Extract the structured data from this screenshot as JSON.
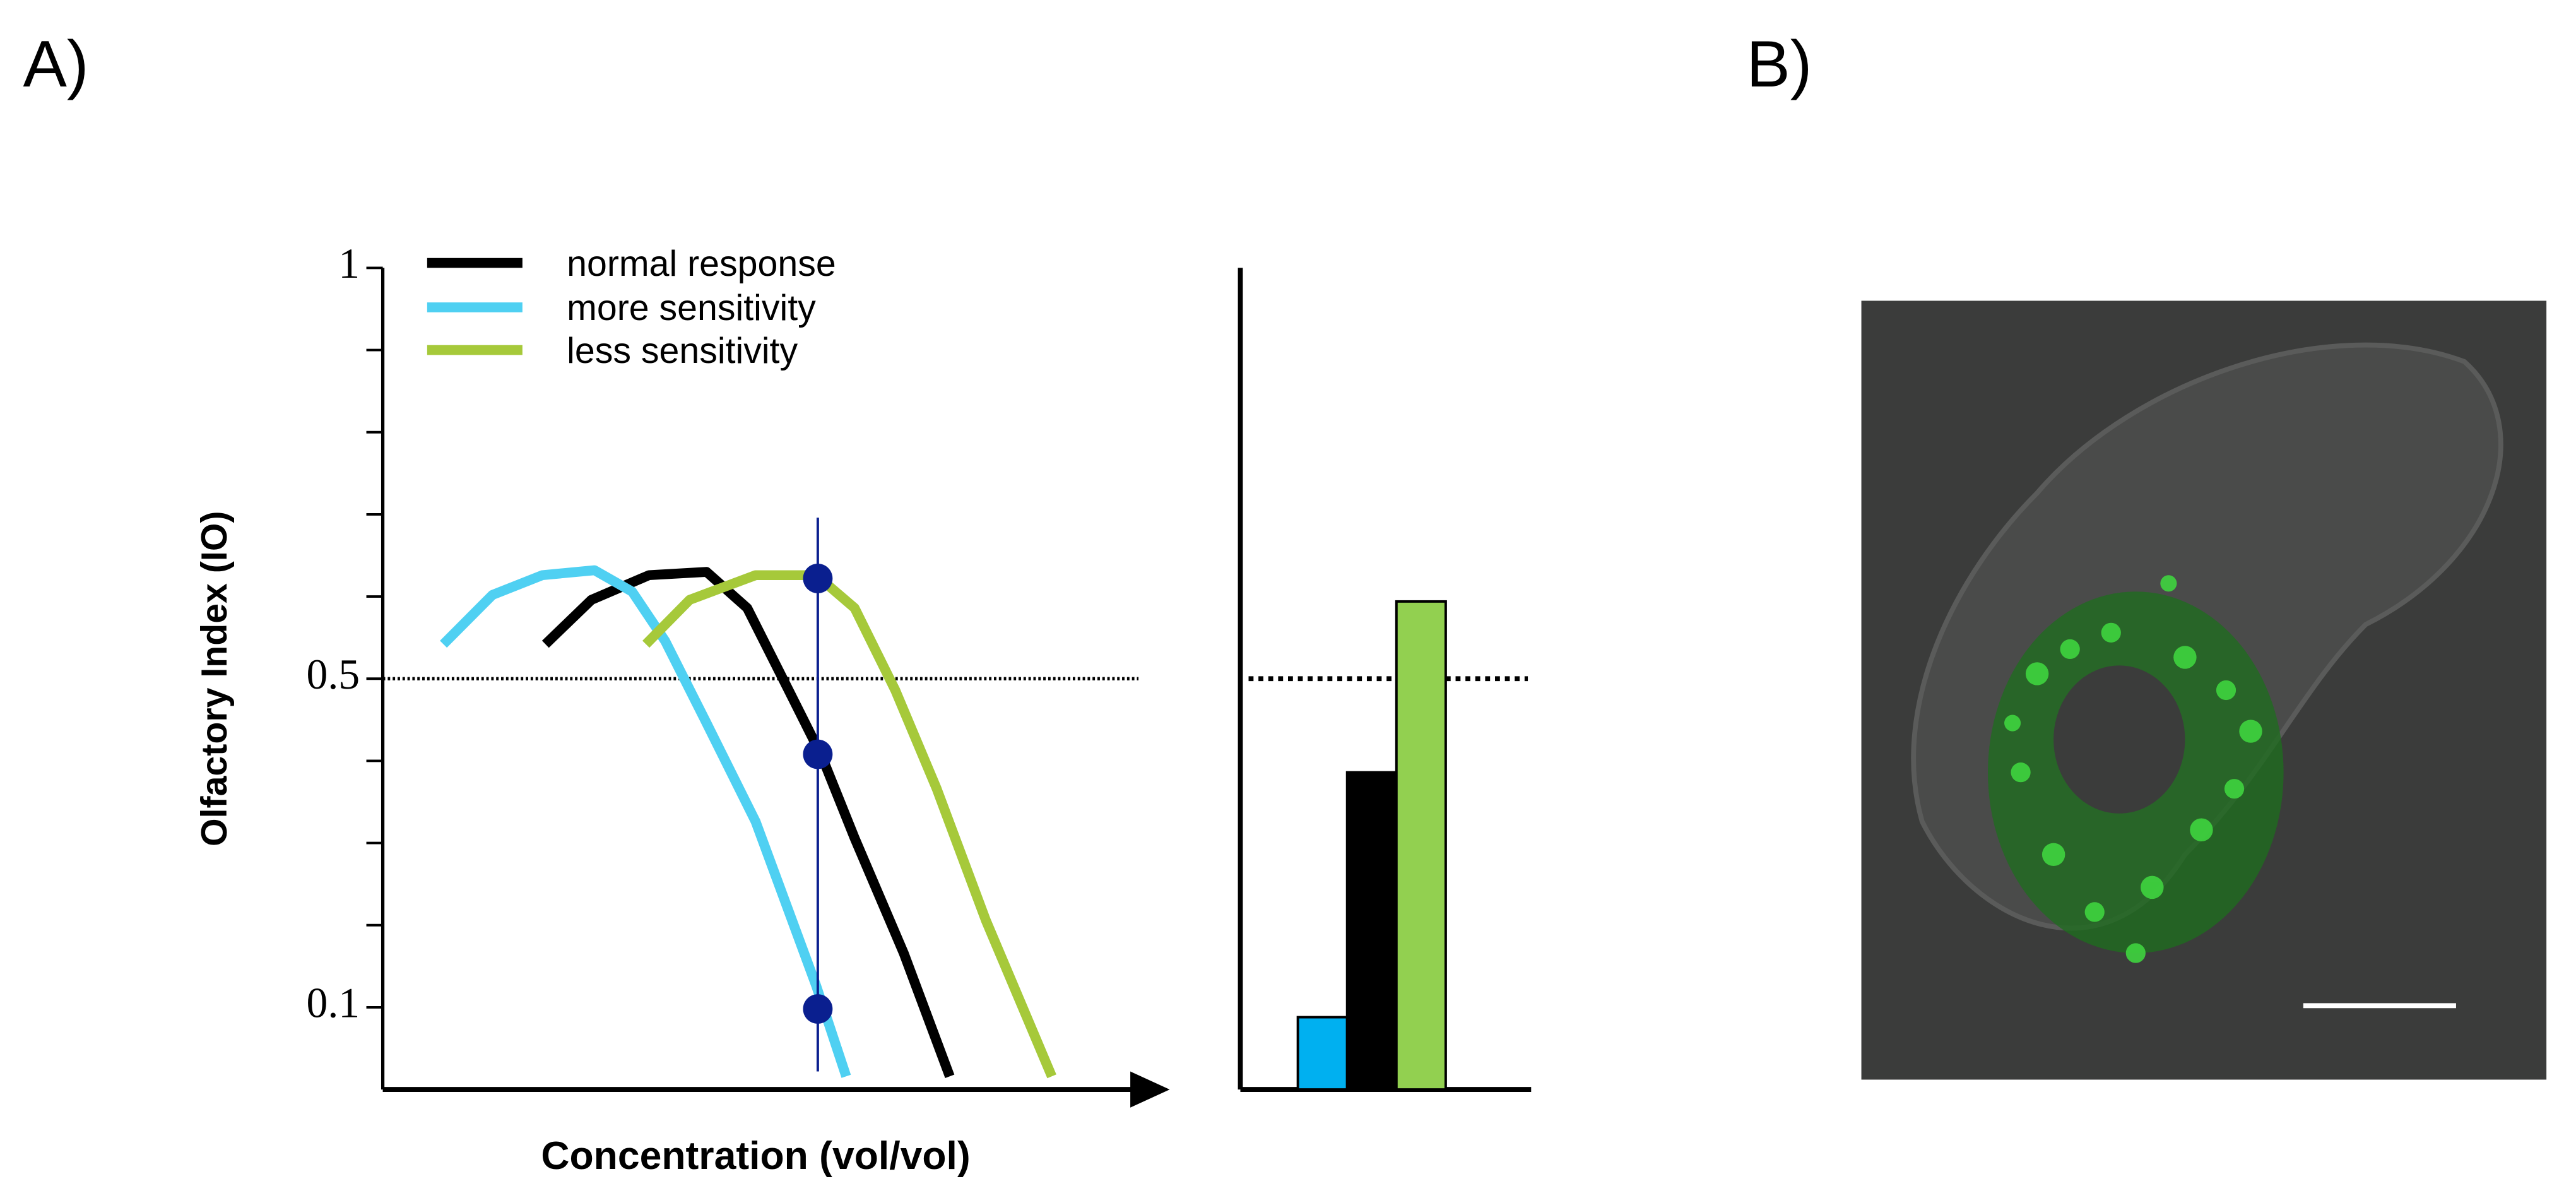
{
  "panel_labels": [
    "A)",
    "B)"
  ],
  "chart_data": [
    {
      "type": "line",
      "xlabel": "Concentration (vol/vol)",
      "ylabel": "Olfactory Index  (IO)",
      "xlim": [
        0,
        100
      ],
      "ylim": [
        0,
        1
      ],
      "yticks": [
        0.1,
        0.5,
        1
      ],
      "minor_yticks": [
        0.2,
        0.3,
        0.4,
        0.6,
        0.7,
        0.8,
        0.9
      ],
      "reference_line": 0.5,
      "marker_x": 56.7,
      "markers": [
        0.622,
        0.408,
        0.098
      ],
      "marker_color": "#0a1f8f",
      "series": [
        {
          "name": "normal response",
          "color": "#000000",
          "x": [
            21.2,
            27.2,
            34.7,
            42.2,
            47.5,
            52.9,
            57.2,
            61.5,
            67.9,
            73.9
          ],
          "values": [
            0.542,
            0.596,
            0.626,
            0.63,
            0.586,
            0.486,
            0.406,
            0.306,
            0.166,
            0.016
          ]
        },
        {
          "name": "more sensitivity",
          "color": "#4fd0f2",
          "x": [
            7.9,
            14.3,
            20.8,
            27.6,
            32.5,
            36.8,
            42.2,
            48.6,
            56.5,
            60.4
          ],
          "values": [
            0.542,
            0.602,
            0.626,
            0.632,
            0.606,
            0.546,
            0.446,
            0.326,
            0.126,
            0.016
          ]
        },
        {
          "name": "less sensitivity",
          "color": "#a6c93a",
          "x": [
            34.3,
            40.0,
            48.6,
            56.5,
            61.5,
            66.8,
            72.2,
            78.6,
            87.2
          ],
          "values": [
            0.542,
            0.596,
            0.626,
            0.626,
            0.586,
            0.486,
            0.366,
            0.206,
            0.016
          ]
        }
      ]
    },
    {
      "type": "bar",
      "categories": [
        null,
        null,
        null
      ],
      "values": [
        0.088,
        0.386,
        0.594
      ],
      "colors": [
        "#00b0f0",
        "#000000",
        "#92d050"
      ],
      "ylim": [
        0,
        1
      ],
      "reference_line": 0.5
    }
  ]
}
